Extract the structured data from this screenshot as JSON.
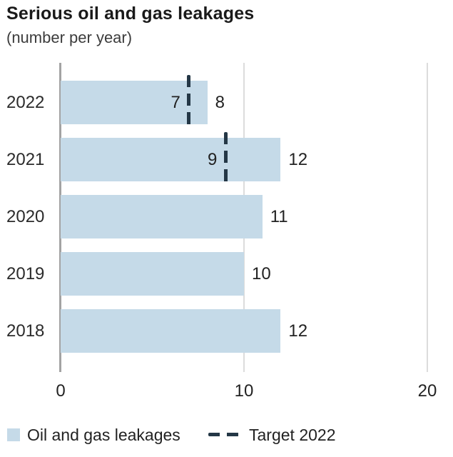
{
  "title": "Serious oil and gas leakages",
  "subtitle": "(number per year)",
  "colors": {
    "bar": "#c5dae8",
    "target": "#243746",
    "axis_line": "#a3a3a3",
    "gridline": "#dcdcdc",
    "text": "#222222"
  },
  "chart_data": {
    "type": "bar",
    "orientation": "horizontal",
    "title": "Serious oil and gas leakages",
    "subtitle_unit": "(number per year)",
    "categories": [
      "2022",
      "2021",
      "2020",
      "2019",
      "2018"
    ],
    "series": [
      {
        "name": "Oil and gas leakages",
        "values": [
          8,
          12,
          11,
          10,
          12
        ]
      }
    ],
    "targets": [
      7,
      9,
      null,
      null,
      null
    ],
    "target_series_name": "Target 2022",
    "xticks": [
      "0",
      "10",
      "20"
    ],
    "xtick_values": [
      0,
      10,
      20
    ],
    "xlim": [
      0,
      21
    ],
    "grid": "vertical",
    "legend_position": "bottom"
  },
  "legend": {
    "series_label": "Oil and gas leakages",
    "target_label": "Target 2022"
  }
}
